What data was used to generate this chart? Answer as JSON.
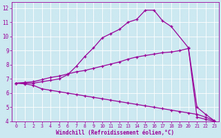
{
  "xlabel": "Windchill (Refroidissement éolien,°C)",
  "bg_color": "#cce8f0",
  "line_color": "#990099",
  "grid_color": "#aaddee",
  "xlim": [
    -0.5,
    23.5
  ],
  "ylim": [
    4,
    12.4
  ],
  "xticks": [
    0,
    1,
    2,
    3,
    4,
    5,
    6,
    7,
    8,
    9,
    10,
    11,
    12,
    13,
    14,
    15,
    16,
    17,
    18,
    19,
    20,
    21,
    22,
    23
  ],
  "yticks": [
    4,
    5,
    6,
    7,
    8,
    9,
    10,
    11,
    12
  ],
  "curve_top_x": [
    0,
    1,
    2,
    3,
    4,
    5,
    6,
    7,
    8,
    9,
    10,
    11,
    12,
    13,
    14,
    15,
    16,
    17,
    18,
    20,
    21,
    22,
    23
  ],
  "curve_top_y": [
    6.7,
    6.7,
    6.7,
    6.8,
    6.9,
    7.0,
    7.3,
    7.9,
    8.6,
    9.2,
    9.9,
    10.2,
    10.5,
    11.0,
    11.2,
    11.85,
    11.85,
    11.1,
    10.7,
    9.2,
    5.0,
    4.5,
    4.05
  ],
  "curve_mid_x": [
    0,
    1,
    2,
    3,
    4,
    5,
    6,
    7,
    8,
    9,
    10,
    11,
    12,
    13,
    14,
    15,
    16,
    17,
    18,
    19,
    20,
    21,
    22,
    23
  ],
  "curve_mid_y": [
    6.7,
    6.75,
    6.8,
    6.95,
    7.1,
    7.2,
    7.35,
    7.5,
    7.6,
    7.75,
    7.9,
    8.05,
    8.2,
    8.4,
    8.55,
    8.65,
    8.75,
    8.85,
    8.9,
    9.0,
    9.15,
    4.3,
    4.15,
    4.0
  ],
  "curve_bot_x": [
    0,
    1,
    2,
    3,
    4,
    5,
    6,
    7,
    8,
    9,
    10,
    11,
    12,
    13,
    14,
    15,
    16,
    17,
    18,
    19,
    20,
    21,
    22,
    23
  ],
  "curve_bot_y": [
    6.7,
    6.65,
    6.55,
    6.3,
    6.2,
    6.1,
    6.0,
    5.9,
    5.8,
    5.7,
    5.6,
    5.5,
    5.4,
    5.3,
    5.2,
    5.1,
    5.0,
    4.9,
    4.8,
    4.7,
    4.6,
    4.5,
    4.3,
    4.05
  ],
  "marker": "+"
}
